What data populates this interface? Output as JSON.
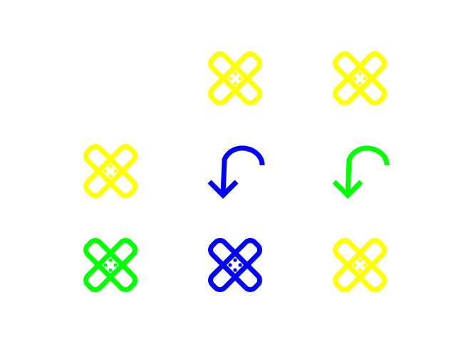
{
  "grid": {
    "rows": 3,
    "columns": 3,
    "cells": [
      {
        "row": 0,
        "col": 0,
        "icon": "empty",
        "color": null
      },
      {
        "row": 0,
        "col": 1,
        "icon": "bandage-icon",
        "color": "#FFFF00"
      },
      {
        "row": 0,
        "col": 2,
        "icon": "bandage-icon",
        "color": "#FFFF00"
      },
      {
        "row": 1,
        "col": 0,
        "icon": "bandage-icon",
        "color": "#FFFF00"
      },
      {
        "row": 1,
        "col": 1,
        "icon": "undo-arrow-icon",
        "color": "#0000FF"
      },
      {
        "row": 1,
        "col": 2,
        "icon": "undo-arrow-icon",
        "color": "#00FF00"
      },
      {
        "row": 2,
        "col": 0,
        "icon": "bandage-icon",
        "color": "#00FF00"
      },
      {
        "row": 2,
        "col": 1,
        "icon": "bandage-icon",
        "color": "#0000FF"
      },
      {
        "row": 2,
        "col": 2,
        "icon": "bandage-icon",
        "color": "#FFFF00"
      }
    ]
  }
}
